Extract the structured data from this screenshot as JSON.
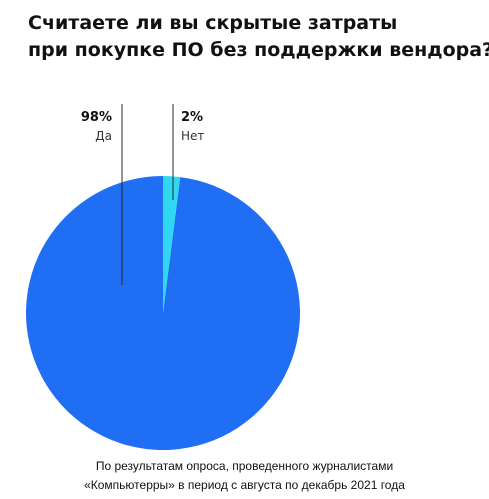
{
  "title": {
    "line1": "Считаете ли вы скрытые затраты",
    "line2": "при покупке ПО без поддержки вендора?"
  },
  "chart_data": {
    "type": "pie",
    "slices": [
      {
        "label": "Да",
        "value": 98,
        "value_label": "98%",
        "color": "#1f6ef4"
      },
      {
        "label": "Нет",
        "value": 2,
        "value_label": "2%",
        "color": "#2fd8f0"
      }
    ]
  },
  "source": {
    "line1": "По результатам опроса, проведенного журналистами",
    "line2": "«Компьютерры» в период с августа по декабрь 2021 года"
  }
}
